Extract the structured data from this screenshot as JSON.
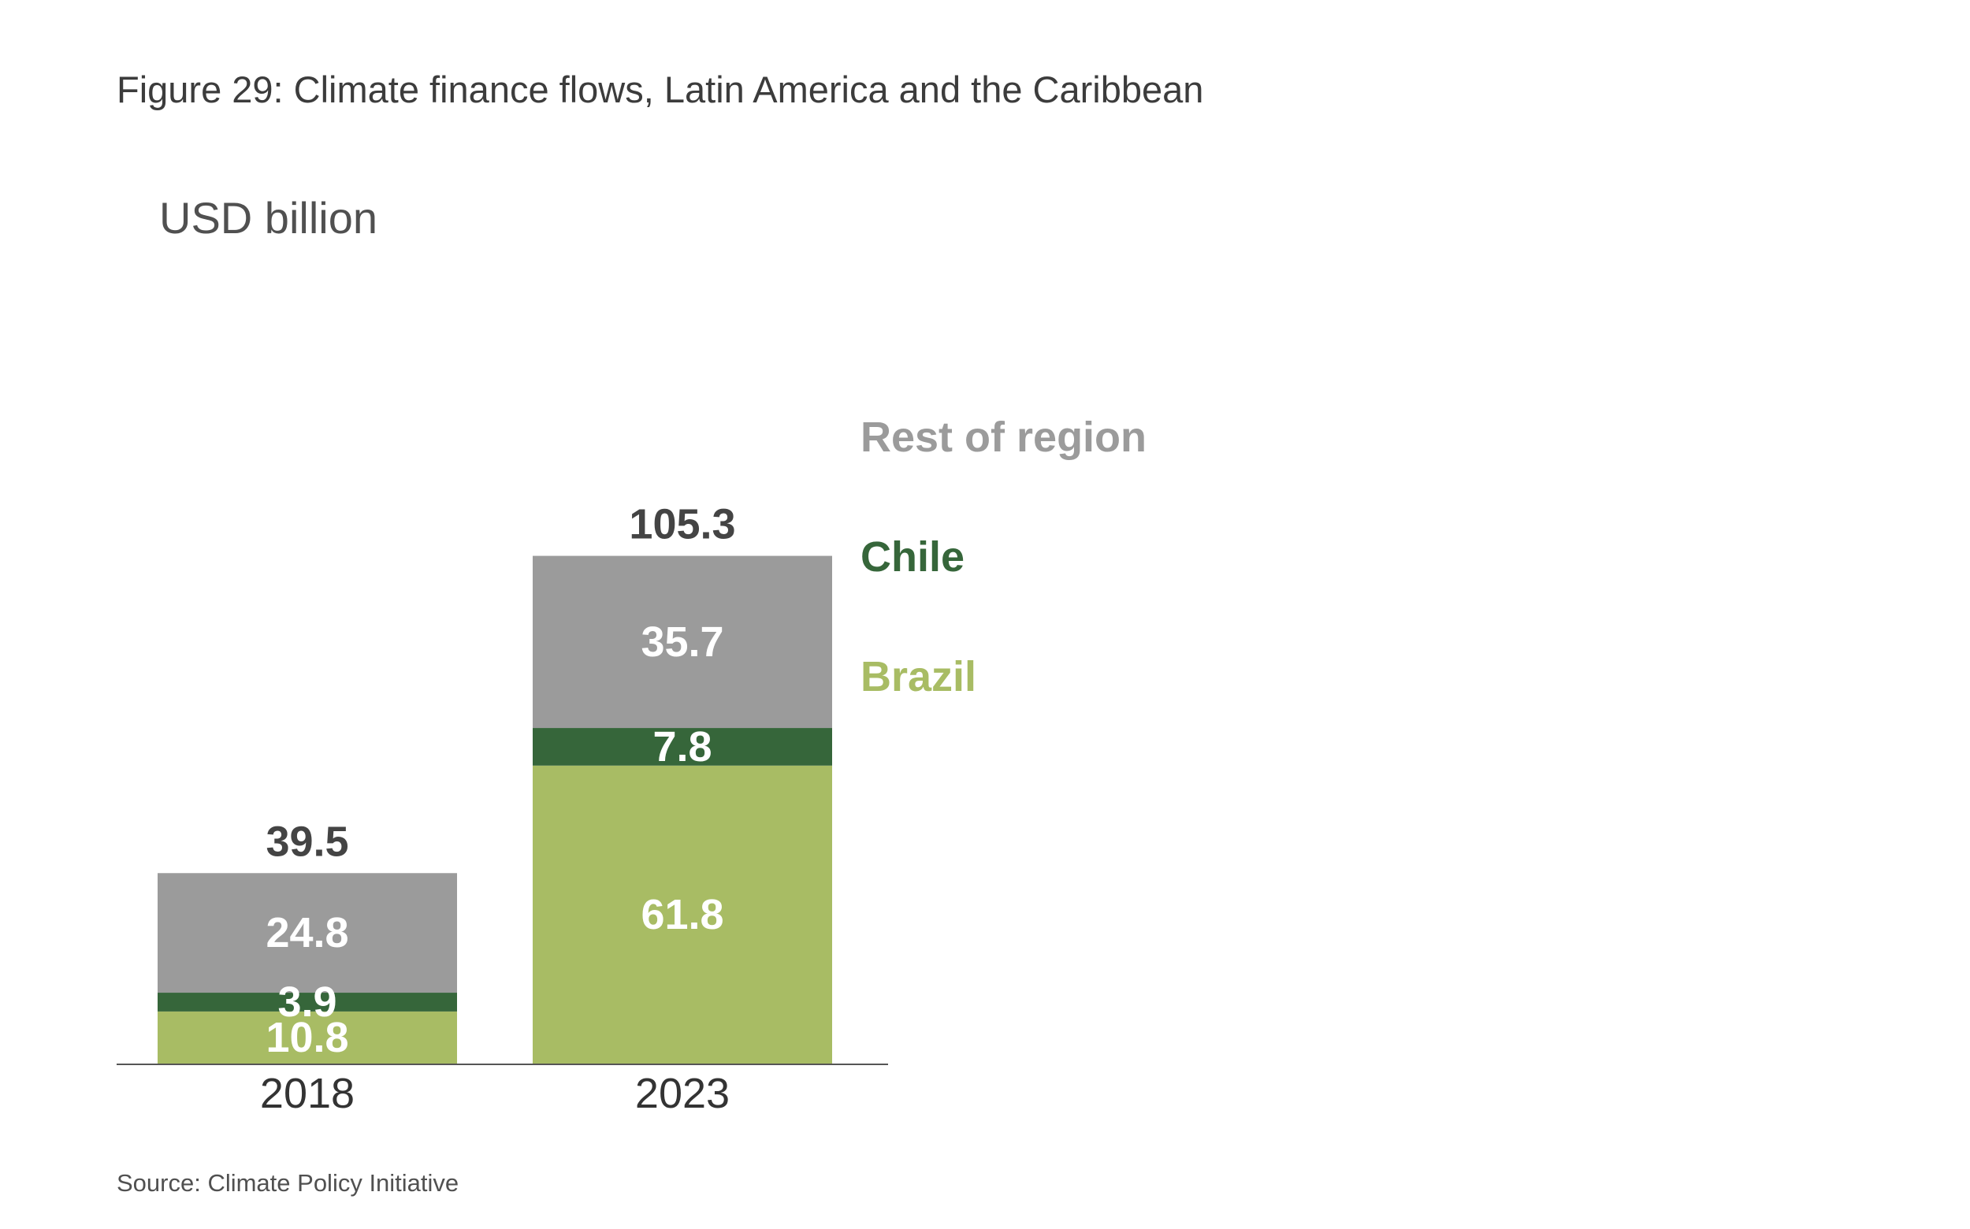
{
  "chart_data": {
    "type": "bar",
    "stacked": true,
    "title": "Figure 29: Climate finance flows, Latin America and the Caribbean",
    "ylabel": "USD billion",
    "categories": [
      "2018",
      "2023"
    ],
    "totals": [
      "39.5",
      "105.3"
    ],
    "series": [
      {
        "name": "Brazil",
        "values": [
          10.8,
          61.8
        ],
        "labels": [
          "10.8",
          "61.8"
        ],
        "color": "#a8bc64"
      },
      {
        "name": "Chile",
        "values": [
          3.9,
          7.8
        ],
        "labels": [
          "3.9",
          "7.8"
        ],
        "color": "#36663a"
      },
      {
        "name": "Rest of region",
        "values": [
          24.8,
          35.7
        ],
        "labels": [
          "24.8",
          "35.7"
        ],
        "color": "#9b9b9b"
      }
    ],
    "legend_order": [
      "Rest of region",
      "Chile",
      "Brazil"
    ],
    "legend_position": "right of bars",
    "grid": false,
    "source": "Source: Climate Policy Initiative"
  }
}
